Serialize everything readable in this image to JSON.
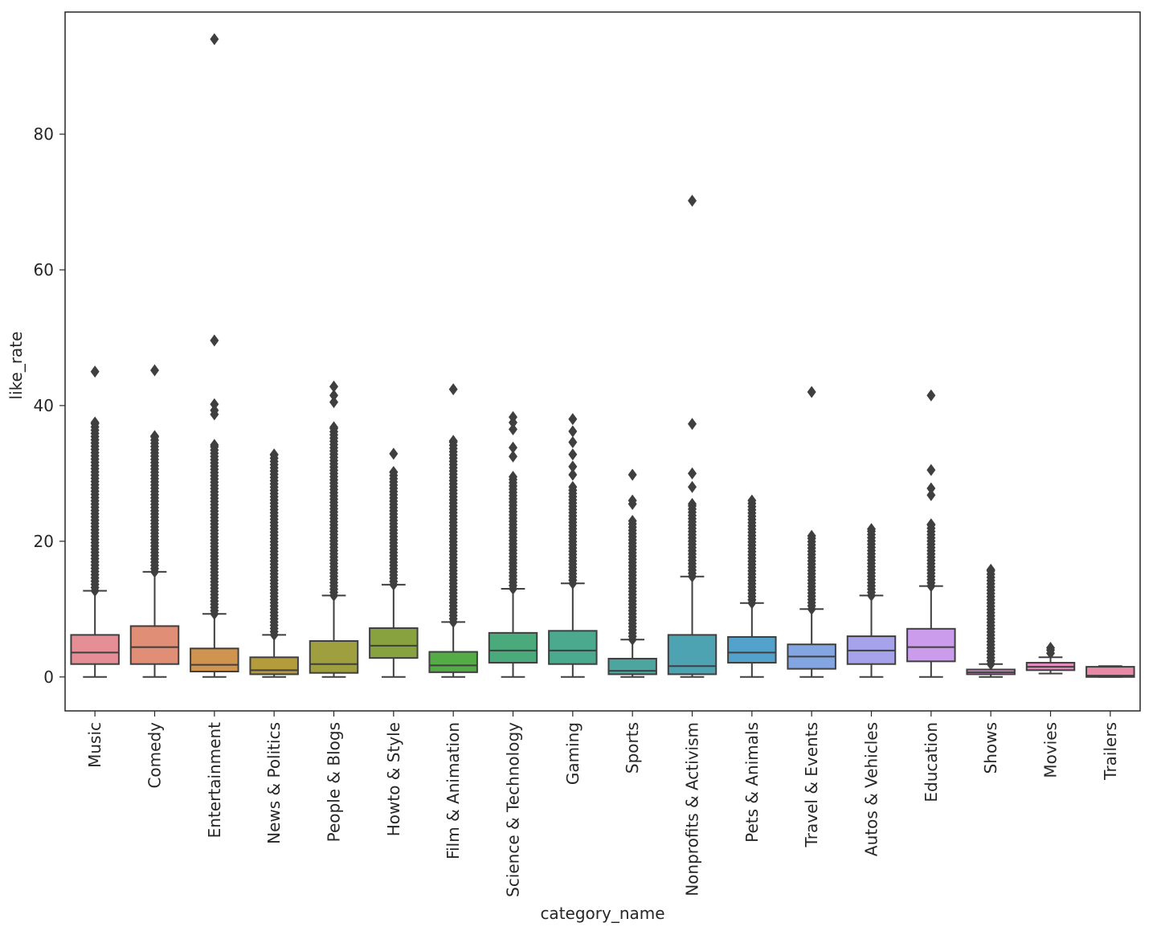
{
  "chart_data": {
    "type": "box",
    "title": "",
    "xlabel": "category_name",
    "ylabel": "like_rate",
    "ylim": [
      -5,
      98
    ],
    "yticks": [
      0,
      20,
      40,
      60,
      80
    ],
    "grid": false,
    "legend": "none",
    "categories": [
      {
        "name": "Music",
        "color": "#e68e96",
        "whislo": 0,
        "q1": 1.9,
        "median": 3.6,
        "q3": 6.2,
        "whishi": 12.7,
        "outlier_band": [
          12.7,
          37.5
        ],
        "outliers": [
          45
        ]
      },
      {
        "name": "Comedy",
        "color": "#e18e76",
        "whislo": 0,
        "q1": 1.9,
        "median": 4.4,
        "q3": 7.5,
        "whishi": 15.5,
        "outlier_band": [
          15.5,
          35.5
        ],
        "outliers": [
          45.2
        ]
      },
      {
        "name": "Entertainment",
        "color": "#cf9550",
        "whislo": 0,
        "q1": 0.8,
        "median": 1.8,
        "q3": 4.2,
        "whishi": 9.3,
        "outlier_band": [
          9.3,
          34.2
        ],
        "outliers": [
          38.7,
          39.3,
          40.2,
          49.6,
          94
        ]
      },
      {
        "name": "News & Politics",
        "color": "#b49b3c",
        "whislo": 0,
        "q1": 0.4,
        "median": 1.0,
        "q3": 2.9,
        "whishi": 6.2,
        "outlier_band": [
          6.2,
          32.8
        ],
        "outliers": []
      },
      {
        "name": "People & Blogs",
        "color": "#9f9f3f",
        "whislo": 0,
        "q1": 0.6,
        "median": 1.9,
        "q3": 5.3,
        "whishi": 12.0,
        "outlier_band": [
          12.0,
          36.8
        ],
        "outliers": [
          40.5,
          41.5,
          42.8
        ]
      },
      {
        "name": "Howto & Style",
        "color": "#87a23f",
        "whislo": 0,
        "q1": 2.8,
        "median": 4.6,
        "q3": 7.2,
        "whishi": 13.6,
        "outlier_band": [
          13.6,
          30.2
        ],
        "outliers": [
          32.9
        ]
      },
      {
        "name": "Film & Animation",
        "color": "#55ab46",
        "whislo": 0,
        "q1": 0.7,
        "median": 1.7,
        "q3": 3.7,
        "whishi": 8.1,
        "outlier_band": [
          8.1,
          34.8
        ],
        "outliers": [
          42.4
        ]
      },
      {
        "name": "Science & Technology",
        "color": "#4aaa7c",
        "whislo": 0,
        "q1": 2.1,
        "median": 3.9,
        "q3": 6.5,
        "whishi": 13.0,
        "outlier_band": [
          13.0,
          29.5
        ],
        "outliers": [
          32.5,
          33.8,
          36.5,
          37.5,
          38.3
        ]
      },
      {
        "name": "Gaming",
        "color": "#4ba98e",
        "whislo": 0,
        "q1": 1.9,
        "median": 3.9,
        "q3": 6.8,
        "whishi": 13.8,
        "outlier_band": [
          13.8,
          28.0
        ],
        "outliers": [
          29.8,
          31.0,
          32.8,
          34.6,
          36.2,
          38.0
        ]
      },
      {
        "name": "Sports",
        "color": "#4ca59e",
        "whislo": 0,
        "q1": 0.4,
        "median": 0.9,
        "q3": 2.7,
        "whishi": 5.5,
        "outlier_band": [
          5.5,
          23.0
        ],
        "outliers": [
          25.5,
          26.0,
          29.8
        ]
      },
      {
        "name": "Nonprofits & Activism",
        "color": "#4ea3b3",
        "whislo": 0,
        "q1": 0.4,
        "median": 1.6,
        "q3": 6.2,
        "whishi": 14.8,
        "outlier_band": [
          14.8,
          25.5
        ],
        "outliers": [
          28.0,
          30.0,
          37.3,
          70.2
        ]
      },
      {
        "name": "Pets & Animals",
        "color": "#52a2cc",
        "whislo": 0,
        "q1": 2.1,
        "median": 3.6,
        "q3": 5.9,
        "whishi": 10.9,
        "outlier_band": [
          10.9,
          26.0
        ],
        "outliers": []
      },
      {
        "name": "Travel & Events",
        "color": "#83a5e1",
        "whislo": 0,
        "q1": 1.2,
        "median": 3.0,
        "q3": 4.8,
        "whishi": 10.0,
        "outlier_band": [
          10.0,
          20.8
        ],
        "outliers": [
          42.0
        ]
      },
      {
        "name": "Autos & Vehicles",
        "color": "#a6a3ea",
        "whislo": 0,
        "q1": 1.9,
        "median": 3.9,
        "q3": 6.0,
        "whishi": 12.0,
        "outlier_band": [
          12.0,
          21.8
        ],
        "outliers": []
      },
      {
        "name": "Education",
        "color": "#cc9cec",
        "whislo": 0,
        "q1": 2.3,
        "median": 4.4,
        "q3": 7.1,
        "whishi": 13.4,
        "outlier_band": [
          13.4,
          22.5
        ],
        "outliers": [
          26.8,
          27.8,
          30.5,
          41.5
        ]
      },
      {
        "name": "Shows",
        "color": "#e090d6",
        "whislo": 0,
        "q1": 0.4,
        "median": 0.7,
        "q3": 1.1,
        "whishi": 1.9,
        "outlier_band": [
          1.9,
          15.8
        ],
        "outliers": []
      },
      {
        "name": "Movies",
        "color": "#e58cbe",
        "whislo": 0.5,
        "q1": 1.0,
        "median": 1.5,
        "q3": 2.1,
        "whishi": 2.9,
        "outlier_band": [
          3.5,
          4.3
        ],
        "outliers": []
      },
      {
        "name": "Trailers",
        "color": "#e88aa6",
        "whislo": 0,
        "q1": 0,
        "median": 0.2,
        "q3": 1.5,
        "whishi": 1.6,
        "outlier_band": null,
        "outliers": []
      }
    ]
  }
}
